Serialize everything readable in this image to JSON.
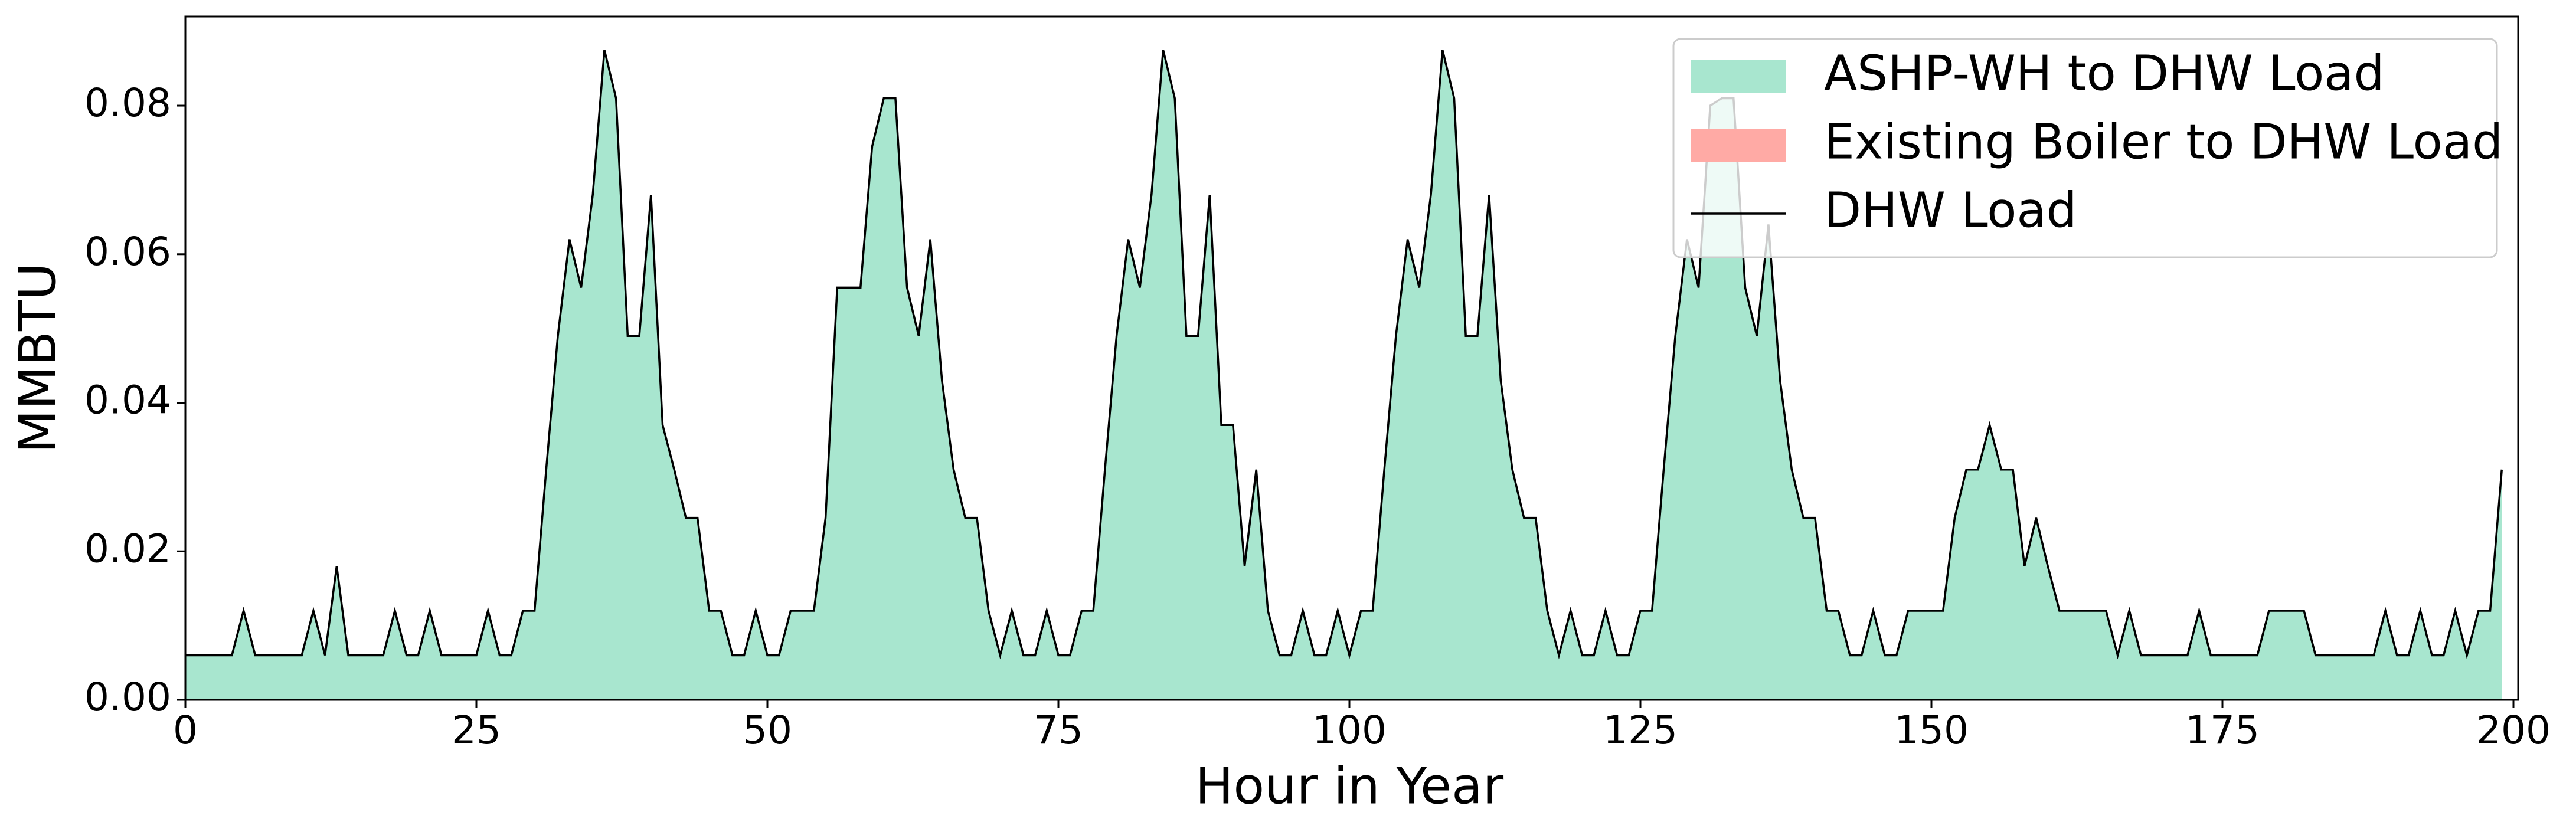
{
  "chart_data": {
    "type": "area",
    "stacked": true,
    "xlabel": "Hour in Year",
    "ylabel": "MMBTU",
    "xlim": [
      0,
      200
    ],
    "xticks": [
      0,
      25,
      50,
      75,
      100,
      125,
      150,
      175,
      200
    ],
    "ylim": [
      0,
      0.092
    ],
    "yticks": [
      {
        "value": 0,
        "label": "0.00"
      },
      {
        "value": 0.02,
        "label": "0.02"
      },
      {
        "value": 0.04,
        "label": "0.04"
      },
      {
        "value": 0.06,
        "label": "0.06"
      },
      {
        "value": 0.08,
        "label": "0.08"
      }
    ],
    "legend": "upper right",
    "grid": false,
    "x": [
      0,
      1,
      2,
      3,
      4,
      5,
      6,
      7,
      8,
      9,
      10,
      11,
      12,
      13,
      14,
      15,
      16,
      17,
      18,
      19,
      20,
      21,
      22,
      23,
      24,
      25,
      26,
      27,
      28,
      29,
      30,
      31,
      32,
      33,
      34,
      35,
      36,
      37,
      38,
      39,
      40,
      41,
      42,
      43,
      44,
      45,
      46,
      47,
      48,
      49,
      50,
      51,
      52,
      53,
      54,
      55,
      56,
      57,
      58,
      59,
      60,
      61,
      62,
      63,
      64,
      65,
      66,
      67,
      68,
      69,
      70,
      71,
      72,
      73,
      74,
      75,
      76,
      77,
      78,
      79,
      80,
      81,
      82,
      83,
      84,
      85,
      86,
      87,
      88,
      89,
      90,
      91,
      92,
      93,
      94,
      95,
      96,
      97,
      98,
      99,
      100,
      101,
      102,
      103,
      104,
      105,
      106,
      107,
      108,
      109,
      110,
      111,
      112,
      113,
      114,
      115,
      116,
      117,
      118,
      119,
      120,
      121,
      122,
      123,
      124,
      125,
      126,
      127,
      128,
      129,
      130,
      131,
      132,
      133,
      134,
      135,
      136,
      137,
      138,
      139,
      140,
      141,
      142,
      143,
      144,
      145,
      146,
      147,
      148,
      149,
      150,
      151,
      152,
      153,
      154,
      155,
      156,
      157,
      158,
      159,
      160,
      161,
      162,
      163,
      164,
      165,
      166,
      167,
      168,
      169,
      170,
      171,
      172,
      173,
      174,
      175,
      176,
      177,
      178,
      179,
      180,
      181,
      182,
      183,
      184,
      185,
      186,
      187,
      188,
      189,
      190,
      191,
      192,
      193,
      194,
      195,
      196,
      197,
      198,
      199
    ],
    "series": [
      {
        "name": "ASHP-WH to DHW Load",
        "type": "area",
        "color": "#a8e6cf",
        "values": [
          0.006,
          0.006,
          0.006,
          0.006,
          0.006,
          0.012,
          0.006,
          0.006,
          0.006,
          0.006,
          0.006,
          0.012,
          0.006,
          0.018,
          0.006,
          0.006,
          0.006,
          0.006,
          0.012,
          0.006,
          0.006,
          0.012,
          0.006,
          0.006,
          0.006,
          0.006,
          0.012,
          0.006,
          0.006,
          0.012,
          0.012,
          0.031,
          0.049,
          0.062,
          0.0555,
          0.068,
          0.0875,
          0.081,
          0.049,
          0.049,
          0.068,
          0.037,
          0.031,
          0.0245,
          0.0245,
          0.012,
          0.012,
          0.006,
          0.006,
          0.012,
          0.006,
          0.006,
          0.012,
          0.012,
          0.012,
          0.0245,
          0.0555,
          0.0555,
          0.0555,
          0.0745,
          0.081,
          0.081,
          0.0555,
          0.049,
          0.062,
          0.043,
          0.031,
          0.0245,
          0.0245,
          0.012,
          0.006,
          0.012,
          0.006,
          0.006,
          0.012,
          0.006,
          0.006,
          0.012,
          0.012,
          0.031,
          0.049,
          0.062,
          0.0555,
          0.068,
          0.0875,
          0.081,
          0.049,
          0.049,
          0.068,
          0.037,
          0.037,
          0.018,
          0.031,
          0.012,
          0.006,
          0.006,
          0.012,
          0.006,
          0.006,
          0.012,
          0.006,
          0.012,
          0.012,
          0.031,
          0.049,
          0.062,
          0.0555,
          0.068,
          0.0875,
          0.081,
          0.049,
          0.049,
          0.068,
          0.043,
          0.031,
          0.0245,
          0.0245,
          0.012,
          0.006,
          0.012,
          0.006,
          0.006,
          0.012,
          0.006,
          0.006,
          0.012,
          0.012,
          0.031,
          0.049,
          0.062,
          0.0555,
          0.08,
          0.081,
          0.081,
          0.0555,
          0.049,
          0.064,
          0.043,
          0.031,
          0.0245,
          0.0245,
          0.012,
          0.012,
          0.006,
          0.006,
          0.012,
          0.006,
          0.006,
          0.012,
          0.012,
          0.012,
          0.012,
          0.0245,
          0.031,
          0.031,
          0.037,
          0.031,
          0.031,
          0.018,
          0.0245,
          0.018,
          0.012,
          0.012,
          0.012,
          0.012,
          0.012,
          0.006,
          0.012,
          0.006,
          0.006,
          0.006,
          0.006,
          0.006,
          0.012,
          0.006,
          0.006,
          0.006,
          0.006,
          0.006,
          0.012,
          0.012,
          0.012,
          0.012,
          0.006,
          0.006,
          0.006,
          0.006,
          0.006,
          0.006,
          0.012,
          0.006,
          0.006,
          0.012,
          0.006,
          0.006,
          0.012,
          0.006,
          0.012,
          0.012,
          0.031
        ]
      },
      {
        "name": "Existing Boiler to DHW Load",
        "type": "area",
        "color": "#ffaaa5",
        "values": [
          0,
          0,
          0,
          0,
          0,
          0,
          0,
          0,
          0,
          0,
          0,
          0,
          0,
          0,
          0,
          0,
          0,
          0,
          0,
          0,
          0,
          0,
          0,
          0,
          0,
          0,
          0,
          0,
          0,
          0,
          0,
          0,
          0,
          0,
          0,
          0,
          0,
          0,
          0,
          0,
          0,
          0,
          0,
          0,
          0,
          0,
          0,
          0,
          0,
          0,
          0,
          0,
          0,
          0,
          0,
          0,
          0,
          0,
          0,
          0,
          0,
          0,
          0,
          0,
          0,
          0,
          0,
          0,
          0,
          0,
          0,
          0,
          0,
          0,
          0,
          0,
          0,
          0,
          0,
          0,
          0,
          0,
          0,
          0,
          0,
          0,
          0,
          0,
          0,
          0,
          0,
          0,
          0,
          0,
          0,
          0,
          0,
          0,
          0,
          0,
          0,
          0,
          0,
          0,
          0,
          0,
          0,
          0,
          0,
          0,
          0,
          0,
          0,
          0,
          0,
          0,
          0,
          0,
          0,
          0,
          0,
          0,
          0,
          0,
          0,
          0,
          0,
          0,
          0,
          0,
          0,
          0,
          0,
          0,
          0,
          0,
          0,
          0,
          0,
          0,
          0,
          0,
          0,
          0,
          0,
          0,
          0,
          0,
          0,
          0,
          0,
          0,
          0,
          0,
          0,
          0,
          0,
          0,
          0,
          0,
          0,
          0,
          0,
          0,
          0,
          0,
          0,
          0,
          0,
          0,
          0,
          0,
          0,
          0,
          0,
          0,
          0,
          0,
          0,
          0,
          0,
          0,
          0,
          0,
          0,
          0,
          0,
          0,
          0,
          0,
          0,
          0,
          0,
          0,
          0,
          0,
          0,
          0,
          0,
          0
        ]
      },
      {
        "name": "DHW Load",
        "type": "line",
        "color": "#000000",
        "values": [
          0.006,
          0.006,
          0.006,
          0.006,
          0.006,
          0.012,
          0.006,
          0.006,
          0.006,
          0.006,
          0.006,
          0.012,
          0.006,
          0.018,
          0.006,
          0.006,
          0.006,
          0.006,
          0.012,
          0.006,
          0.006,
          0.012,
          0.006,
          0.006,
          0.006,
          0.006,
          0.012,
          0.006,
          0.006,
          0.012,
          0.012,
          0.031,
          0.049,
          0.062,
          0.0555,
          0.068,
          0.0875,
          0.081,
          0.049,
          0.049,
          0.068,
          0.037,
          0.031,
          0.0245,
          0.0245,
          0.012,
          0.012,
          0.006,
          0.006,
          0.012,
          0.006,
          0.006,
          0.012,
          0.012,
          0.012,
          0.0245,
          0.0555,
          0.0555,
          0.0555,
          0.0745,
          0.081,
          0.081,
          0.0555,
          0.049,
          0.062,
          0.043,
          0.031,
          0.0245,
          0.0245,
          0.012,
          0.006,
          0.012,
          0.006,
          0.006,
          0.012,
          0.006,
          0.006,
          0.012,
          0.012,
          0.031,
          0.049,
          0.062,
          0.0555,
          0.068,
          0.0875,
          0.081,
          0.049,
          0.049,
          0.068,
          0.037,
          0.037,
          0.018,
          0.031,
          0.012,
          0.006,
          0.006,
          0.012,
          0.006,
          0.006,
          0.012,
          0.006,
          0.012,
          0.012,
          0.031,
          0.049,
          0.062,
          0.0555,
          0.068,
          0.0875,
          0.081,
          0.049,
          0.049,
          0.068,
          0.043,
          0.031,
          0.0245,
          0.0245,
          0.012,
          0.006,
          0.012,
          0.006,
          0.006,
          0.012,
          0.006,
          0.006,
          0.012,
          0.012,
          0.031,
          0.049,
          0.062,
          0.0555,
          0.08,
          0.081,
          0.081,
          0.0555,
          0.049,
          0.064,
          0.043,
          0.031,
          0.0245,
          0.0245,
          0.012,
          0.012,
          0.006,
          0.006,
          0.012,
          0.006,
          0.006,
          0.012,
          0.012,
          0.012,
          0.012,
          0.0245,
          0.031,
          0.031,
          0.037,
          0.031,
          0.031,
          0.018,
          0.0245,
          0.018,
          0.012,
          0.012,
          0.012,
          0.012,
          0.012,
          0.006,
          0.012,
          0.006,
          0.006,
          0.006,
          0.006,
          0.006,
          0.012,
          0.006,
          0.006,
          0.006,
          0.006,
          0.006,
          0.012,
          0.012,
          0.012,
          0.012,
          0.006,
          0.006,
          0.006,
          0.006,
          0.006,
          0.006,
          0.012,
          0.006,
          0.006,
          0.012,
          0.006,
          0.006,
          0.012,
          0.006,
          0.012,
          0.012,
          0.031
        ]
      }
    ]
  }
}
